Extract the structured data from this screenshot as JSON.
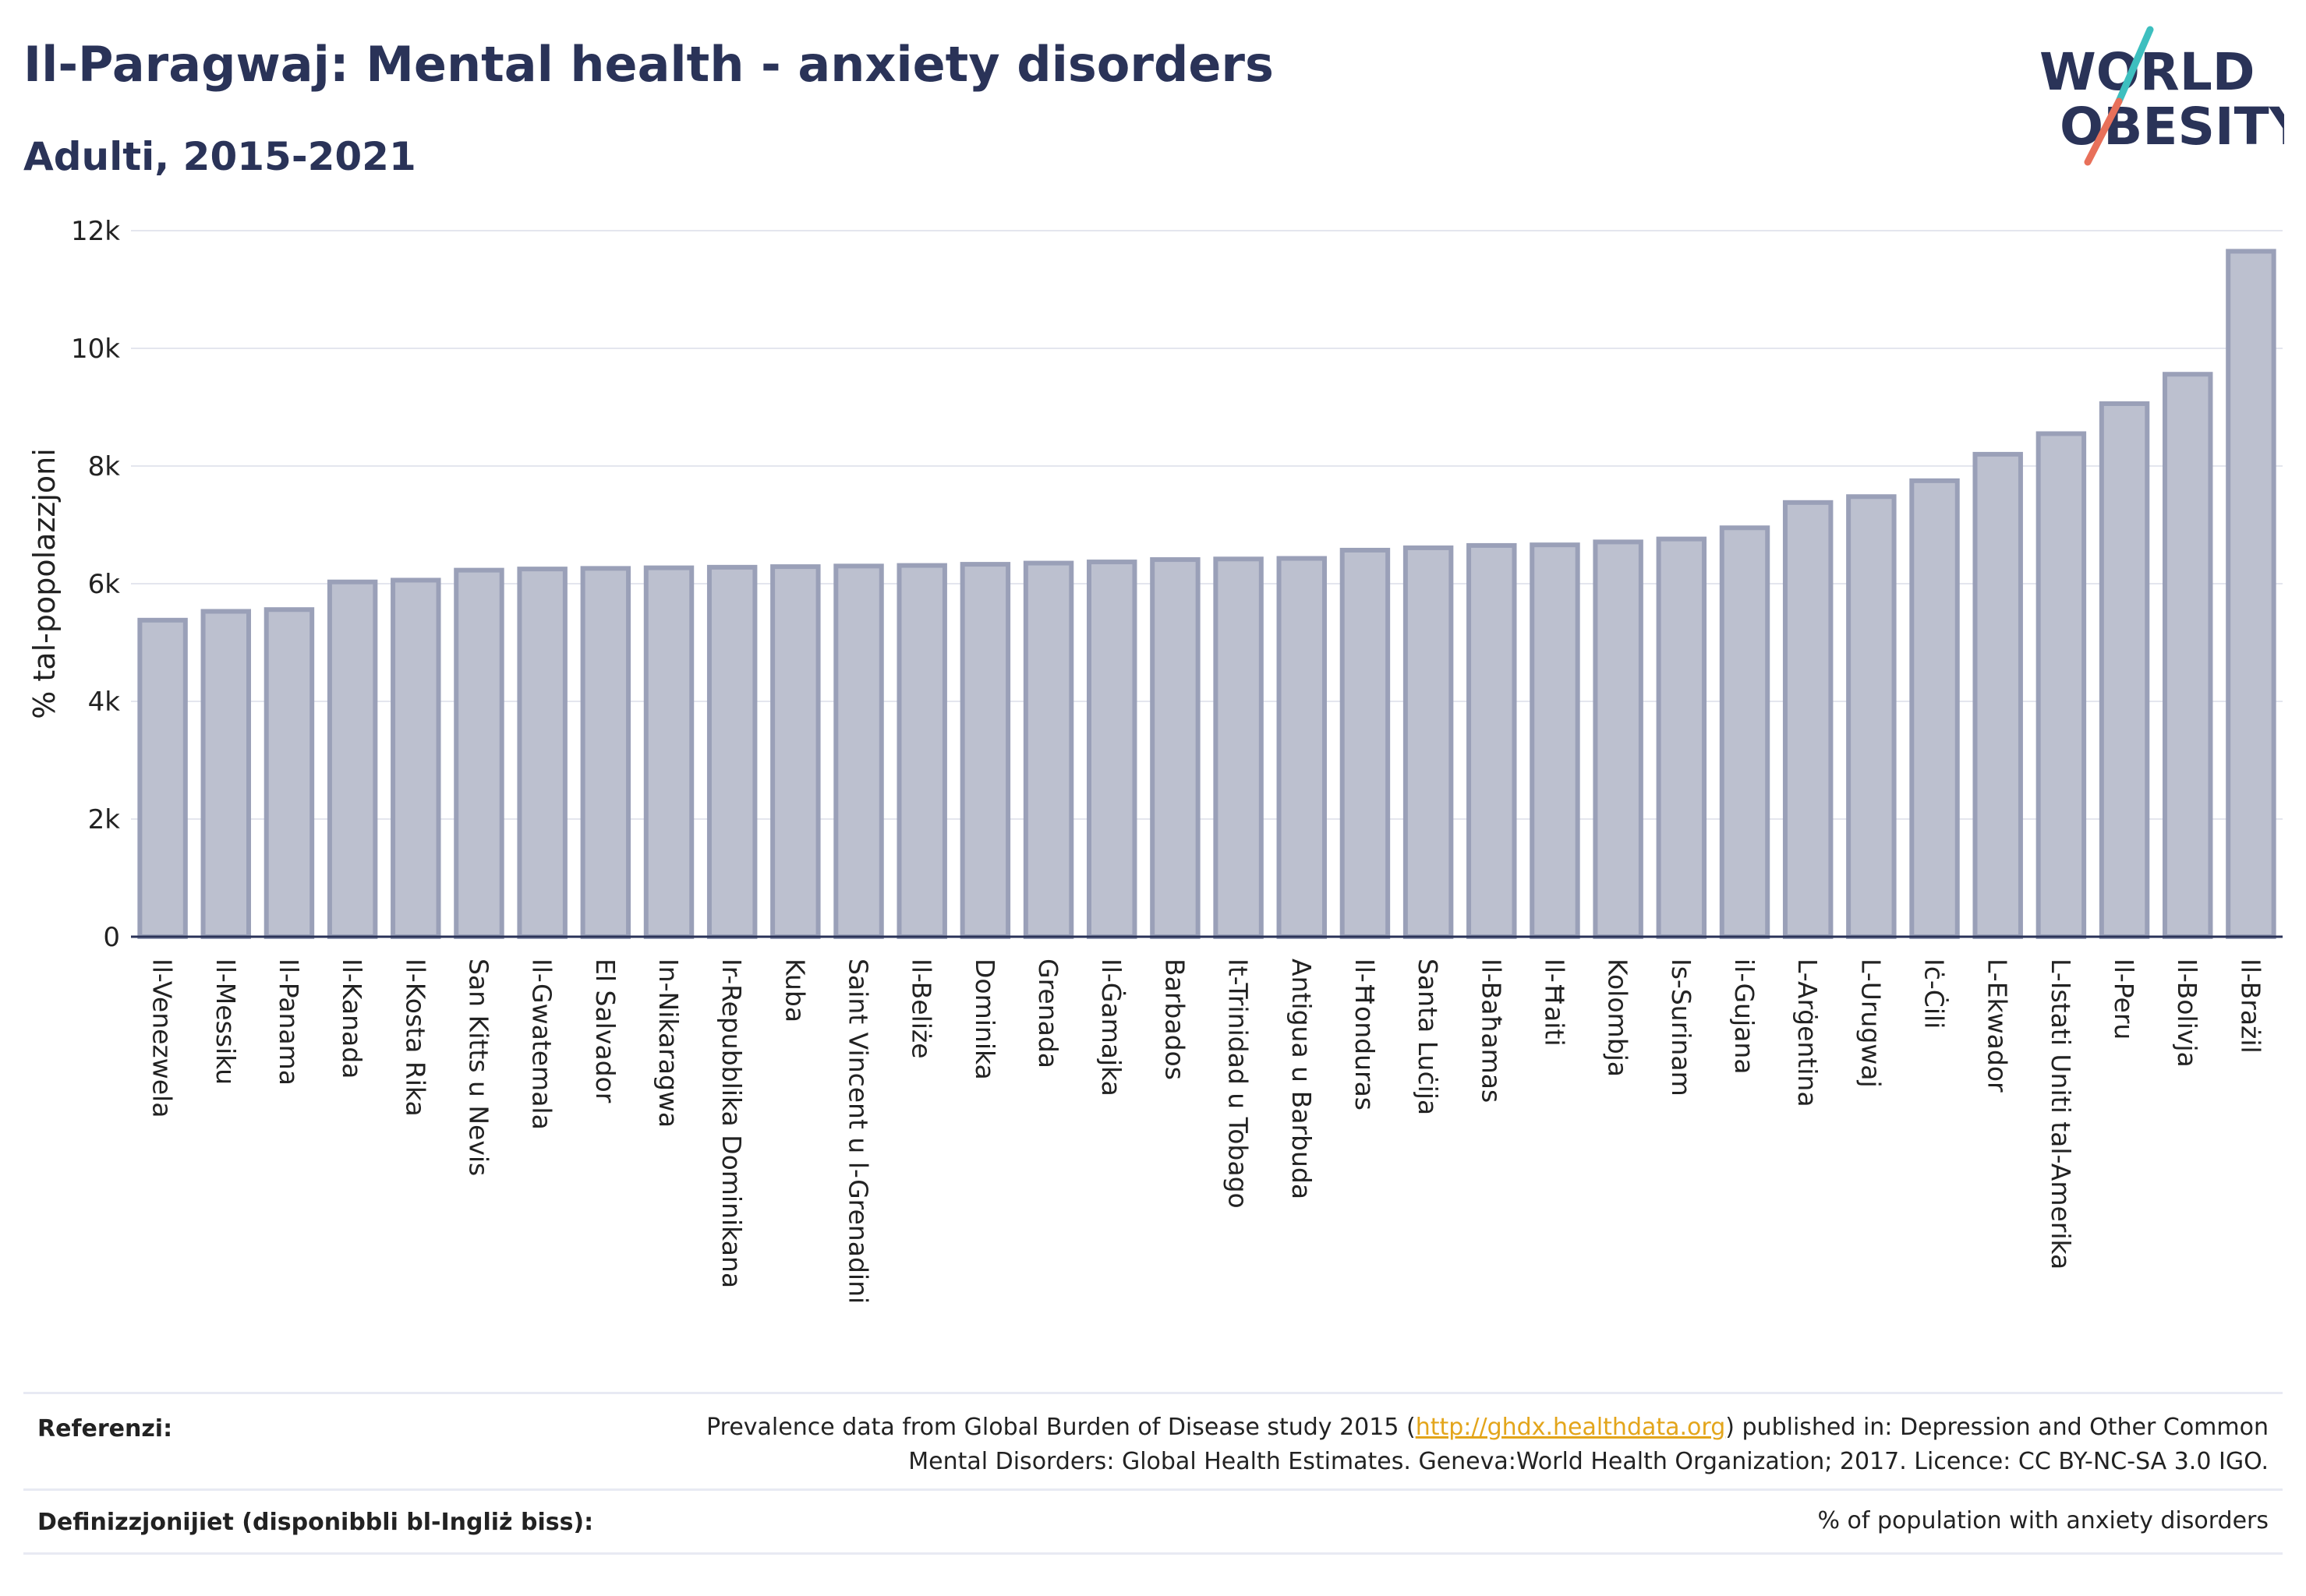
{
  "header": {
    "title": "Il-Paragwaj: Mental health - anxiety disorders",
    "subtitle": "Adulti, 2015-2021"
  },
  "logo": {
    "line1": "WORLD",
    "line2": "OBESITY",
    "accent_teal": "#3dbfbf",
    "accent_coral": "#e8705a",
    "text_color": "#2a3358"
  },
  "colors": {
    "bar_fill": "#bcc0cf",
    "bar_stroke": "#9aa0b8",
    "grid": "#e4e6ee",
    "axis": "#2a3358"
  },
  "chart_data": {
    "type": "bar",
    "title": "Il-Paragwaj: Mental health - anxiety disorders",
    "subtitle": "Adulti, 2015-2021",
    "xlabel": "",
    "ylabel": "% tal-popolazzjoni",
    "ylim": [
      0,
      12000
    ],
    "yticks": [
      0,
      2000,
      4000,
      6000,
      8000,
      10000,
      12000
    ],
    "ytick_labels": [
      "0",
      "2k",
      "4k",
      "6k",
      "8k",
      "10k",
      "12k"
    ],
    "grid": true,
    "categories": [
      "Il-Venezwela",
      "Il-Messiku",
      "Il-Panama",
      "Il-Kanada",
      "Il-Kosta Rika",
      "San Kitts u Nevis",
      "Il-Gwatemala",
      "El Salvador",
      "In-Nikaragwa",
      "Ir-Repubblika Dominikana",
      "Kuba",
      "Saint Vincent u l-Grenadini",
      "Il-Beliże",
      "Dominika",
      "Grenada",
      "Il-Ġamajka",
      "Barbados",
      "It-Trinidad u Tobago",
      "Antigua u Barbuda",
      "Il-Ħonduras",
      "Santa Luċija",
      "Il-Baħamas",
      "Il-Ħaiti",
      "Kolombja",
      "Is-Surinam",
      "il-Gujana",
      "L-Arġentina",
      "L-Urugwaj",
      "Iċ-Ċili",
      "L-Ekwador",
      "L-Istati Uniti tal-Amerika",
      "Il-Peru",
      "Il-Bolivja",
      "Il-Brażil"
    ],
    "values": [
      5380,
      5530,
      5560,
      6030,
      6060,
      6230,
      6250,
      6260,
      6270,
      6280,
      6290,
      6300,
      6310,
      6330,
      6350,
      6370,
      6410,
      6420,
      6430,
      6570,
      6610,
      6650,
      6660,
      6710,
      6760,
      6950,
      7380,
      7480,
      7750,
      8200,
      8550,
      9060,
      9560,
      11650
    ]
  },
  "footer": {
    "references_label": "Referenzi:",
    "references_text_before": "Prevalence data from Global Burden of Disease study 2015 (",
    "references_link": "http://ghdx.healthdata.org",
    "references_text_after": ") published in: Depression and Other Common",
    "references_line2": "Mental Disorders: Global Health Estimates. Geneva:World Health Organization; 2017. Licence: CC BY-NC-SA 3.0 IGO.",
    "definitions_label": "Definizzjonijiet (disponibbli bl-Ingliż biss):",
    "definitions_text": "% of population with anxiety disorders"
  }
}
